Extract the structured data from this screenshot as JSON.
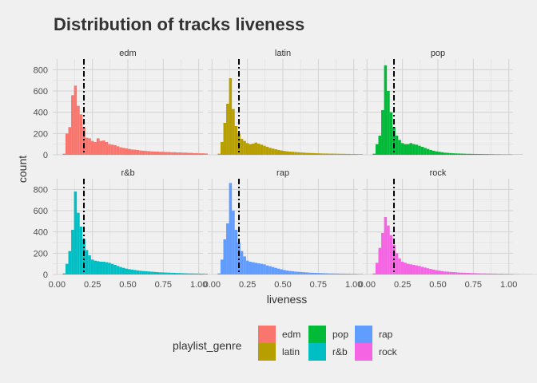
{
  "chart_data": {
    "type": "histogram",
    "title": "Distribution of tracks liveness",
    "xlabel": "liveness",
    "ylabel": "count",
    "xlim": [
      -0.03,
      1.03
    ],
    "ylim": [
      0,
      900
    ],
    "x_ticks": [
      0,
      0.25,
      0.5,
      0.75,
      1.0
    ],
    "x_tick_labels": [
      "0.00",
      "0.25",
      "0.50",
      "0.75",
      "1.00"
    ],
    "y_ticks": [
      0,
      200,
      400,
      600,
      800
    ],
    "y_tick_labels": [
      "0",
      "200",
      "400",
      "600",
      "800"
    ],
    "bin_width": 0.02,
    "bin_start": 0.0,
    "reference_line": {
      "x": 0.19,
      "style": "dashed",
      "color": "#000000"
    },
    "grid": true,
    "legend": {
      "title": "playlist_genre",
      "position": "bottom",
      "entries": [
        {
          "name": "edm",
          "color": "#F8766D"
        },
        {
          "name": "latin",
          "color": "#B79F00"
        },
        {
          "name": "pop",
          "color": "#00BA38"
        },
        {
          "name": "r&b",
          "color": "#00BFC4"
        },
        {
          "name": "rap",
          "color": "#619CFF"
        },
        {
          "name": "rock",
          "color": "#F564E3"
        }
      ]
    },
    "panels": [
      {
        "name": "edm",
        "color": "#F8766D",
        "values": [
          0,
          0,
          10,
          200,
          260,
          560,
          650,
          460,
          380,
          260,
          160,
          155,
          130,
          120,
          155,
          130,
          135,
          120,
          100,
          95,
          90,
          80,
          70,
          65,
          60,
          55,
          50,
          48,
          45,
          40,
          38,
          36,
          34,
          32,
          30,
          30,
          28,
          28,
          26,
          26,
          24,
          24,
          22,
          22,
          20,
          20,
          18,
          18,
          16,
          16,
          14,
          14,
          12,
          12,
          10,
          10,
          8,
          8,
          6,
          6,
          5,
          5,
          4,
          4,
          3,
          3,
          2,
          2,
          0,
          0,
          20,
          0,
          0,
          0,
          0,
          0,
          0,
          0,
          0,
          0,
          0,
          0,
          0,
          0,
          0,
          0,
          0,
          0,
          0,
          0,
          0,
          0,
          0,
          0,
          0,
          0,
          0,
          0,
          0,
          0
        ]
      },
      {
        "name": "latin",
        "color": "#B79F00",
        "values": [
          0,
          0,
          10,
          120,
          300,
          480,
          720,
          430,
          270,
          200,
          150,
          130,
          110,
          100,
          105,
          115,
          105,
          95,
          85,
          75,
          65,
          58,
          52,
          46,
          40,
          36,
          32,
          30,
          28,
          26,
          24,
          22,
          20,
          18,
          17,
          16,
          15,
          14,
          13,
          12,
          12,
          11,
          11,
          10,
          10,
          9,
          9,
          8,
          8,
          7,
          7,
          6,
          6,
          5,
          5,
          4,
          4,
          3,
          3,
          3,
          3,
          2,
          2,
          2,
          2,
          2,
          2,
          0,
          0,
          0,
          0,
          0,
          0,
          0,
          0,
          0,
          0,
          0,
          0,
          0,
          0,
          0,
          0,
          0,
          0,
          0,
          0,
          0,
          0,
          0,
          0,
          0,
          0,
          0,
          0,
          0,
          0,
          0,
          0,
          0
        ]
      },
      {
        "name": "pop",
        "color": "#00BA38",
        "values": [
          0,
          0,
          10,
          100,
          180,
          420,
          840,
          600,
          400,
          260,
          180,
          140,
          110,
          100,
          100,
          110,
          100,
          95,
          85,
          75,
          65,
          55,
          45,
          38,
          32,
          28,
          24,
          20,
          18,
          16,
          14,
          13,
          12,
          11,
          10,
          9,
          9,
          8,
          8,
          7,
          7,
          6,
          6,
          5,
          5,
          4,
          4,
          3,
          3,
          3,
          3,
          2,
          2,
          2,
          2,
          0,
          0,
          0,
          0,
          0,
          0,
          0,
          0,
          0,
          0,
          0,
          0,
          0,
          0,
          0,
          0,
          0,
          0,
          0,
          0,
          0,
          0,
          0,
          0,
          0,
          0,
          0,
          0,
          0,
          0,
          0,
          0,
          0,
          0,
          0,
          0,
          0,
          0,
          0,
          0,
          0,
          0,
          0,
          0,
          0
        ]
      },
      {
        "name": "r&b",
        "color": "#00BFC4",
        "values": [
          0,
          0,
          10,
          100,
          220,
          420,
          780,
          580,
          450,
          330,
          230,
          180,
          140,
          130,
          125,
          120,
          120,
          115,
          110,
          100,
          90,
          80,
          70,
          62,
          55,
          50,
          46,
          42,
          38,
          35,
          32,
          30,
          28,
          26,
          24,
          22,
          20,
          19,
          18,
          17,
          16,
          15,
          14,
          13,
          12,
          11,
          10,
          10,
          9,
          9,
          8,
          8,
          7,
          7,
          6,
          6,
          5,
          5,
          4,
          4,
          3,
          3,
          3,
          3,
          2,
          2,
          2,
          2,
          2,
          2,
          0,
          0,
          0,
          0,
          0,
          0,
          0,
          0,
          0,
          0,
          0,
          0,
          0,
          0,
          20,
          0,
          0,
          0,
          0,
          0,
          0,
          0,
          0,
          0,
          0,
          0,
          0,
          0,
          0,
          0
        ]
      },
      {
        "name": "rap",
        "color": "#619CFF",
        "values": [
          0,
          0,
          10,
          140,
          330,
          480,
          860,
          600,
          420,
          300,
          220,
          170,
          130,
          120,
          115,
          110,
          105,
          100,
          95,
          85,
          78,
          70,
          62,
          55,
          48,
          42,
          37,
          33,
          30,
          27,
          25,
          23,
          21,
          19,
          17,
          16,
          15,
          14,
          13,
          12,
          11,
          10,
          10,
          9,
          9,
          8,
          8,
          7,
          7,
          6,
          6,
          5,
          5,
          4,
          4,
          3,
          3,
          3,
          3,
          2,
          2,
          2,
          2,
          2,
          0,
          0,
          0,
          0,
          0,
          0,
          0,
          0,
          0,
          0,
          0,
          0,
          0,
          0,
          0,
          0,
          0,
          0,
          0,
          0,
          0,
          0,
          0,
          0,
          0,
          0,
          0,
          0,
          0,
          0,
          0,
          0,
          0,
          0,
          0,
          0
        ]
      },
      {
        "name": "rock",
        "color": "#F564E3",
        "values": [
          0,
          0,
          10,
          110,
          250,
          390,
          540,
          460,
          370,
          280,
          200,
          150,
          120,
          110,
          100,
          95,
          90,
          85,
          80,
          72,
          65,
          58,
          52,
          46,
          40,
          36,
          32,
          28,
          26,
          24,
          22,
          20,
          18,
          17,
          16,
          15,
          14,
          13,
          12,
          11,
          10,
          10,
          9,
          9,
          8,
          8,
          7,
          7,
          6,
          6,
          5,
          5,
          4,
          4,
          3,
          3,
          3,
          3,
          2,
          2,
          2,
          2,
          2,
          2,
          0,
          0,
          0,
          0,
          0,
          0,
          0,
          0,
          0,
          0,
          0,
          0,
          0,
          0,
          0,
          0,
          0,
          0,
          0,
          0,
          0,
          0,
          0,
          0,
          0,
          0,
          0,
          0,
          0,
          0,
          0,
          0,
          0,
          0,
          0,
          0
        ]
      }
    ]
  }
}
